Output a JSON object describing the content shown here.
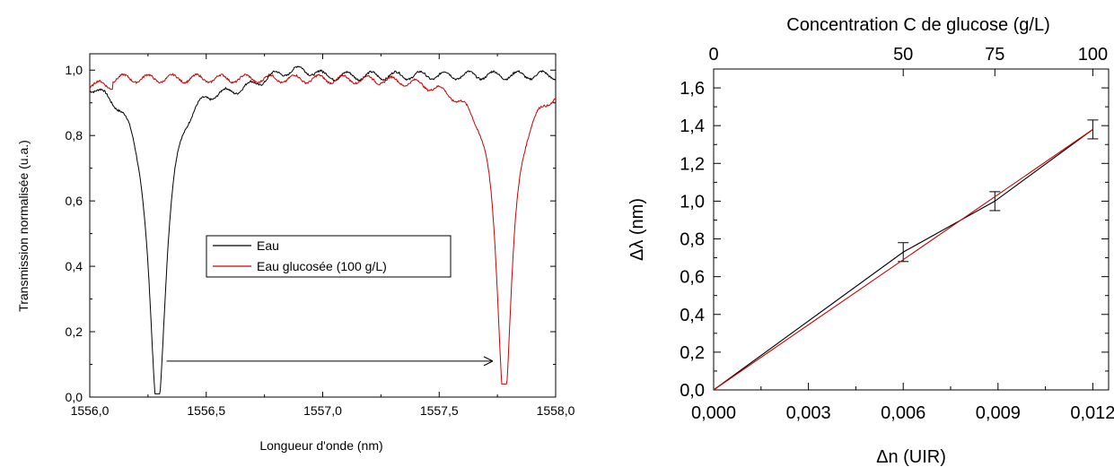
{
  "chart_data": [
    {
      "type": "line",
      "title": "",
      "xlabel": "Longueur d'onde (nm)",
      "ylabel": "Transmission normalisée (u.a.)",
      "xlim": [
        1556.0,
        1558.0
      ],
      "ylim": [
        0.0,
        1.05
      ],
      "xticks": [
        "1556,0",
        "1556,5",
        "1557,0",
        "1557,5",
        "1558,0"
      ],
      "yticks": [
        "0,0",
        "0,2",
        "0,4",
        "0,6",
        "0,8",
        "1,0"
      ],
      "grid": false,
      "legend_position": "center",
      "series": [
        {
          "name": "Eau",
          "color": "#000000",
          "dip_center": 1556.29,
          "dip_min": 0.01,
          "baseline": 0.985
        },
        {
          "name": "Eau glucosée (100 g/L)",
          "color": "#cc0000",
          "dip_center": 1557.78,
          "dip_min": 0.04,
          "baseline": 0.975
        }
      ],
      "annotations": [
        {
          "type": "arrow",
          "from": [
            1556.33,
            0.11
          ],
          "to": [
            1557.73,
            0.11
          ]
        }
      ]
    },
    {
      "type": "line",
      "title": "",
      "xlabel": "Δn (UIR)",
      "ylabel": "Δλ (nm)",
      "top_xlabel": "Concentration C de glucose (g/L)",
      "xlim": [
        0.0,
        0.0125
      ],
      "ylim": [
        0.0,
        1.7
      ],
      "xticks": [
        "0,000",
        "0,003",
        "0,006",
        "0,009",
        "0,012"
      ],
      "yticks": [
        "0,0",
        "0,2",
        "0,4",
        "0,6",
        "0,8",
        "1,0",
        "1,2",
        "1,4",
        "1,6"
      ],
      "top_ticks": [
        {
          "label": "0",
          "x": 0.0
        },
        {
          "label": "50",
          "x": 0.006
        },
        {
          "label": "75",
          "x": 0.0089
        },
        {
          "label": "100",
          "x": 0.012
        }
      ],
      "grid": false,
      "series": [
        {
          "name": "",
          "color": "#000000",
          "x": [
            0.0,
            0.006,
            0.0089,
            0.012
          ],
          "y": [
            0.0,
            0.73,
            1.0,
            1.38
          ],
          "error": [
            0.0,
            0.05,
            0.05,
            0.05
          ]
        },
        {
          "name": "",
          "color": "#cc0000",
          "x": [
            0.0,
            0.012
          ],
          "y": [
            0.0,
            1.38
          ],
          "fit": true
        }
      ]
    }
  ]
}
